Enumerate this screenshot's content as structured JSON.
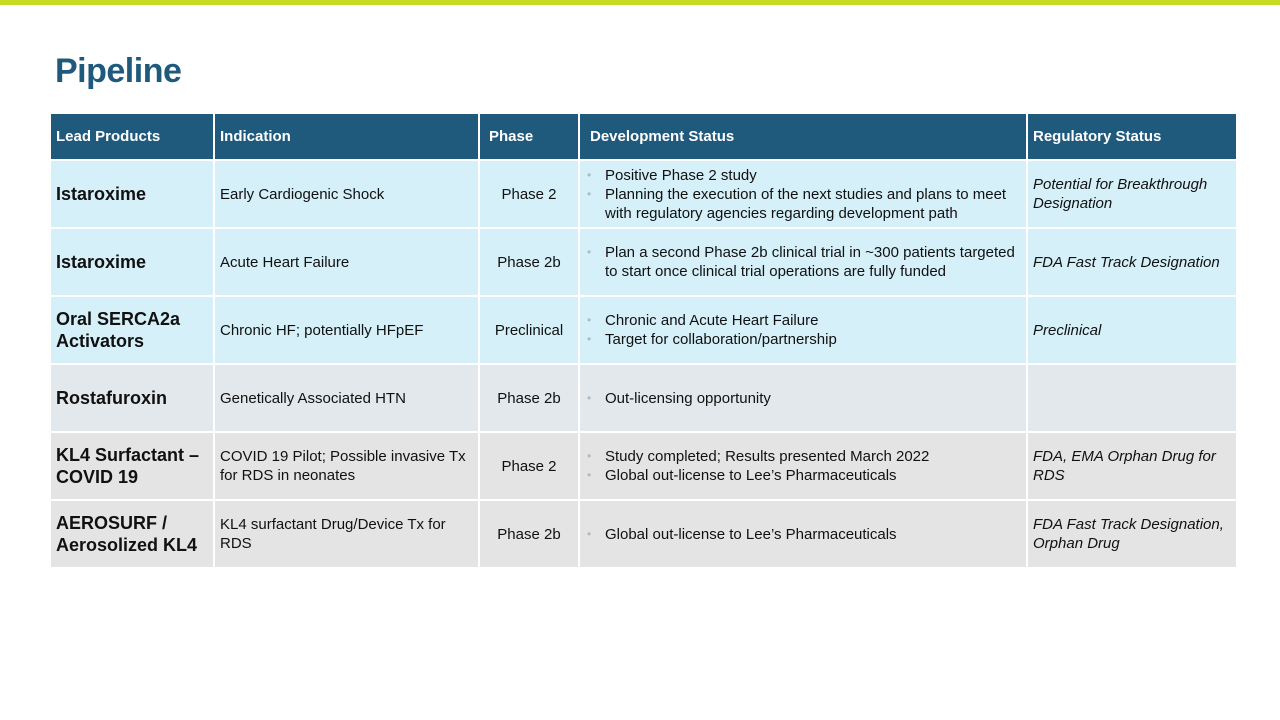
{
  "title": "Pipeline",
  "accent_color": "#c5dc22",
  "header_color": "#1f5a7d",
  "columns": [
    "Lead Products",
    "Indication",
    "Phase",
    "Development Status",
    "Regulatory Status"
  ],
  "rows": [
    {
      "product": "Istaroxime",
      "indication": "Early Cardiogenic Shock",
      "phase": "Phase 2",
      "status": [
        "Positive Phase 2 study",
        "Planning the execution of the next studies and plans to meet with regulatory agencies regarding development path"
      ],
      "regulatory": "Potential for Breakthrough Designation"
    },
    {
      "product": "Istaroxime",
      "indication": "Acute Heart Failure",
      "phase": "Phase 2b",
      "status": [
        "Plan a second Phase 2b clinical trial in ~300 patients targeted to start once clinical trial operations are fully funded"
      ],
      "regulatory": "FDA Fast Track Designation"
    },
    {
      "product": "Oral SERCA2a Activators",
      "indication": "Chronic HF; potentially HFpEF",
      "phase": "Preclinical",
      "status": [
        "Chronic and Acute Heart Failure",
        "Target for collaboration/partnership"
      ],
      "regulatory": "Preclinical"
    },
    {
      "product": "Rostafuroxin",
      "indication": "Genetically Associated HTN",
      "phase": "Phase 2b",
      "status": [
        "Out-licensing opportunity"
      ],
      "regulatory": ""
    },
    {
      "product": "KL4 Surfactant – COVID 19",
      "indication": "COVID 19 Pilot; Possible invasive Tx for RDS in neonates",
      "phase": "Phase 2",
      "status": [
        "Study completed; Results presented March 2022",
        "Global out-license to Lee’s Pharmaceuticals"
      ],
      "regulatory": "FDA, EMA Orphan Drug for RDS"
    },
    {
      "product": "AEROSURF / Aerosolized KL4",
      "indication": "KL4 surfactant Drug/Device Tx for RDS",
      "phase": "Phase 2b",
      "status": [
        "Global out-license to Lee’s Pharmaceuticals"
      ],
      "regulatory": "FDA Fast Track Designation, Orphan Drug"
    }
  ]
}
